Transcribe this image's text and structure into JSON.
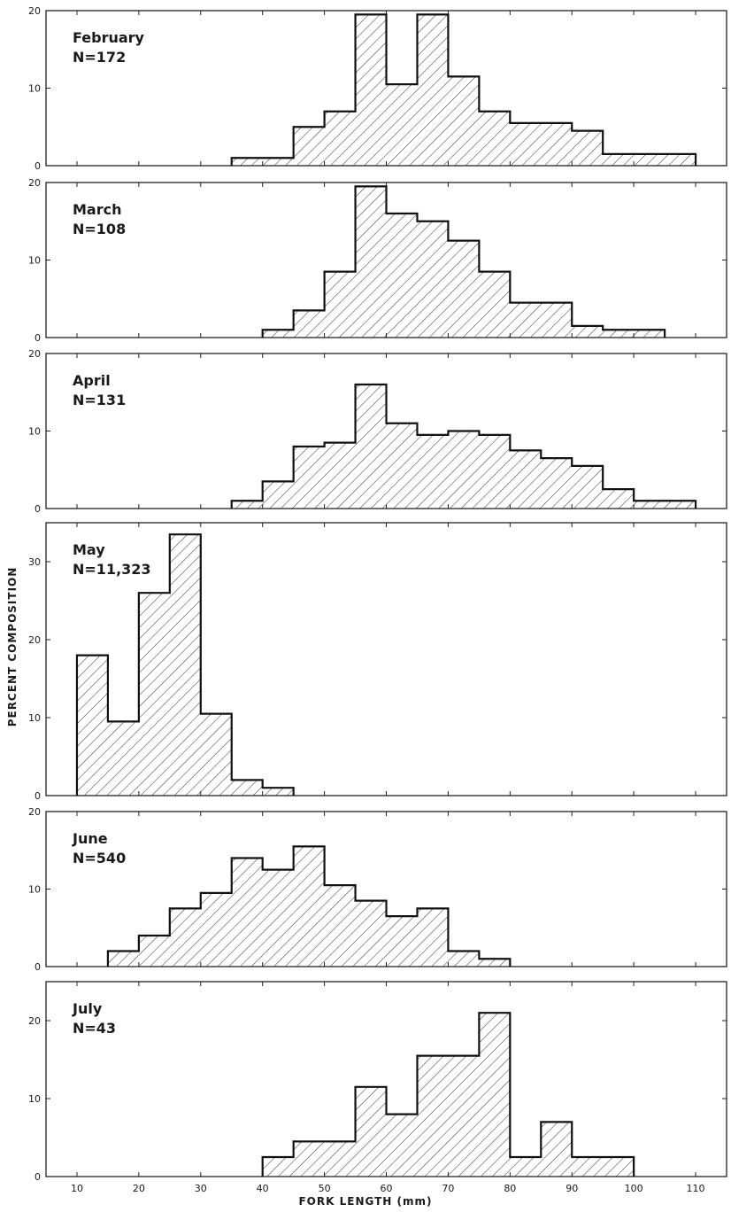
{
  "figure": {
    "ylabel": "PERCENT COMPOSITION",
    "xlabel": "FORK LENGTH (mm)"
  },
  "chart_data": [
    {
      "type": "bar",
      "month": "February",
      "n_label": "N=172",
      "bin_width": 5,
      "xlim": [
        5,
        115
      ],
      "ylim": [
        0,
        20
      ],
      "yticks": [
        0,
        10,
        20
      ],
      "xticks": [
        10,
        20,
        30,
        40,
        50,
        60,
        70,
        80,
        90,
        100,
        110
      ],
      "bins": [
        35,
        40,
        45,
        50,
        55,
        60,
        65,
        70,
        75,
        80,
        85,
        90,
        95,
        100,
        105
      ],
      "values": [
        1,
        1,
        5,
        7,
        19.5,
        10.5,
        19.5,
        11.5,
        7,
        5.5,
        5.5,
        4.5,
        1.5,
        1.5,
        1.5
      ]
    },
    {
      "type": "bar",
      "month": "March",
      "n_label": "N=108",
      "bin_width": 5,
      "xlim": [
        5,
        115
      ],
      "ylim": [
        0,
        20
      ],
      "yticks": [
        0,
        10,
        20
      ],
      "xticks": [
        10,
        20,
        30,
        40,
        50,
        60,
        70,
        80,
        90,
        100,
        110
      ],
      "bins": [
        40,
        45,
        50,
        55,
        60,
        65,
        70,
        75,
        80,
        85,
        90,
        95,
        100
      ],
      "values": [
        1,
        3.5,
        8.5,
        19.5,
        16,
        15,
        12.5,
        8.5,
        4.5,
        4.5,
        1.5,
        1,
        1
      ]
    },
    {
      "type": "bar",
      "month": "April",
      "n_label": "N=131",
      "bin_width": 5,
      "xlim": [
        5,
        115
      ],
      "ylim": [
        0,
        20
      ],
      "yticks": [
        0,
        10,
        20
      ],
      "xticks": [
        10,
        20,
        30,
        40,
        50,
        60,
        70,
        80,
        90,
        100,
        110
      ],
      "bins": [
        35,
        40,
        45,
        50,
        55,
        60,
        65,
        70,
        75,
        80,
        85,
        90,
        95,
        100,
        105
      ],
      "values": [
        1,
        3.5,
        8,
        8.5,
        16,
        11,
        9.5,
        10,
        9.5,
        7.5,
        6.5,
        5.5,
        2.5,
        1,
        1
      ]
    },
    {
      "type": "bar",
      "month": "May",
      "n_label": "N=11,323",
      "bin_width": 5,
      "xlim": [
        5,
        115
      ],
      "ylim": [
        0,
        35
      ],
      "yticks": [
        0,
        10,
        20,
        30
      ],
      "xticks": [
        10,
        20,
        30,
        40,
        50,
        60,
        70,
        80,
        90,
        100,
        110
      ],
      "bins": [
        10,
        15,
        20,
        25,
        30,
        35,
        40
      ],
      "values": [
        18,
        9.5,
        26,
        33.5,
        10.5,
        2,
        1
      ]
    },
    {
      "type": "bar",
      "month": "June",
      "n_label": "N=540",
      "bin_width": 5,
      "xlim": [
        5,
        115
      ],
      "ylim": [
        0,
        20
      ],
      "yticks": [
        0,
        10,
        20
      ],
      "xticks": [
        10,
        20,
        30,
        40,
        50,
        60,
        70,
        80,
        90,
        100,
        110
      ],
      "bins": [
        15,
        20,
        25,
        30,
        35,
        40,
        45,
        50,
        55,
        60,
        65,
        70,
        75
      ],
      "values": [
        2,
        4,
        7.5,
        9.5,
        14,
        12.5,
        15.5,
        10.5,
        8.5,
        6.5,
        7.5,
        2,
        1
      ]
    },
    {
      "type": "bar",
      "month": "July",
      "n_label": "N=43",
      "bin_width": 5,
      "xlim": [
        5,
        115
      ],
      "ylim": [
        0,
        25
      ],
      "yticks": [
        0,
        10,
        20
      ],
      "xticks": [
        10,
        20,
        30,
        40,
        50,
        60,
        70,
        80,
        90,
        100,
        110
      ],
      "xticklabels_shown": true,
      "bins": [
        40,
        45,
        50,
        55,
        60,
        65,
        70,
        75,
        80,
        85,
        90,
        95
      ],
      "values": [
        2.5,
        4.5,
        4.5,
        11.5,
        8,
        15.5,
        15.5,
        21,
        2.5,
        7,
        2.5,
        2.5
      ]
    }
  ]
}
